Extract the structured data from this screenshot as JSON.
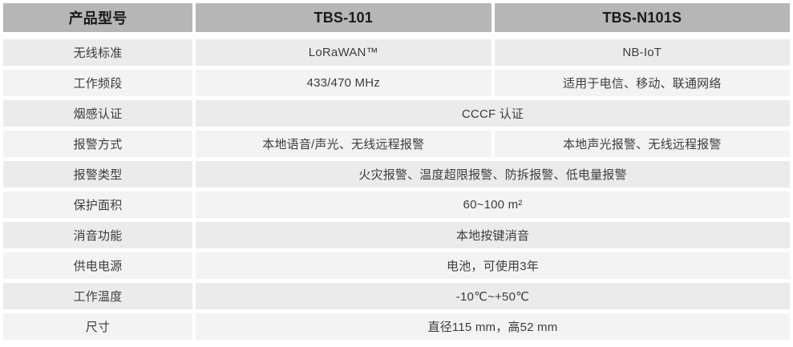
{
  "colors": {
    "header_bg": "#b6b6b6",
    "row_odd_bg": "#ebebeb",
    "row_even_bg": "#f3f3f3",
    "header_text": "#1a1a1a",
    "body_text": "#3d3d3d",
    "page_bg": "#ffffff"
  },
  "table": {
    "header": {
      "col1": "产品型号",
      "col2": "TBS-101",
      "col3": "TBS-N101S"
    },
    "rows": [
      {
        "label": "无线标准",
        "merged": false,
        "cells": [
          "LoRaWAN™",
          "NB-IoT"
        ]
      },
      {
        "label": "工作频段",
        "merged": false,
        "cells": [
          "433/470 MHz",
          "适用于电信、移动、联通网络"
        ]
      },
      {
        "label": "烟感认证",
        "merged": true,
        "cells": [
          "CCCF 认证"
        ]
      },
      {
        "label": "报警方式",
        "merged": false,
        "cells": [
          "本地语音/声光、无线远程报警",
          "本地声光报警、无线远程报警"
        ]
      },
      {
        "label": "报警类型",
        "merged": true,
        "cells": [
          "火灾报警、温度超限报警、防拆报警、低电量报警"
        ]
      },
      {
        "label": "保护面积",
        "merged": true,
        "cells": [
          "60~100 m²"
        ]
      },
      {
        "label": "消音功能",
        "merged": true,
        "cells": [
          "本地按键消音"
        ]
      },
      {
        "label": "供电电源",
        "merged": true,
        "cells": [
          "电池，可使用3年"
        ]
      },
      {
        "label": "工作温度",
        "merged": true,
        "cells": [
          "-10℃~+50℃"
        ]
      },
      {
        "label": "尺寸",
        "merged": true,
        "cells": [
          "直径115 mm，高52 mm"
        ]
      }
    ]
  }
}
